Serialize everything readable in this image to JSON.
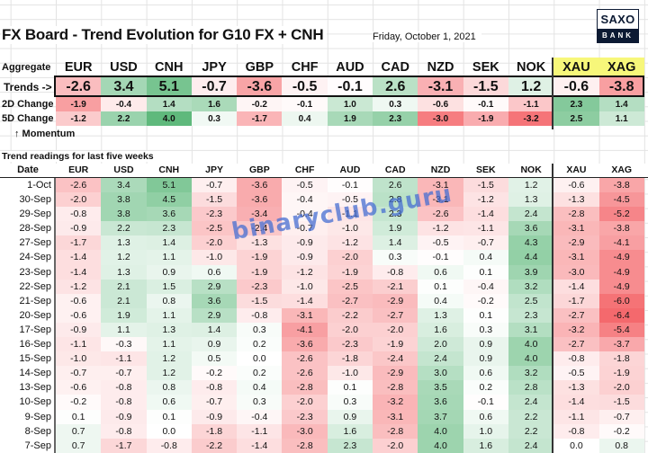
{
  "header": {
    "title": "FX Board - Trend Evolution for G10 FX + CNH",
    "date": "Friday, October 1, 2021",
    "logo_top": "SAXO",
    "logo_bottom": "BANK"
  },
  "colors": {
    "metal_header_bg": "#f7f77a",
    "positive_max": "#5fb97c",
    "negative_max": "#f4676b",
    "logo_navy": "#0c1a33",
    "watermark": "#466ed2"
  },
  "currencies": [
    "EUR",
    "USD",
    "CNH",
    "JPY",
    "GBP",
    "CHF",
    "AUD",
    "CAD",
    "NZD",
    "SEK",
    "NOK",
    "XAU",
    "XAG"
  ],
  "aggregate": {
    "label_aggregate": "Aggregate",
    "label_trends": "Trends ->",
    "label_2d": "2D Change",
    "label_5d": "5D Change",
    "label_momentum": "↑ Momentum",
    "trends": [
      "-2.6",
      "3.4",
      "5.1",
      "-0.7",
      "-3.6",
      "-0.5",
      "-0.1",
      "2.6",
      "-3.1",
      "-1.5",
      "1.2",
      "-0.6",
      "-3.8"
    ],
    "change_2d": [
      "-1.9",
      "-0.4",
      "1.4",
      "1.6",
      "-0.2",
      "-0.1",
      "1.0",
      "0.3",
      "-0.6",
      "-0.1",
      "-1.1",
      "2.3",
      "1.4"
    ],
    "change_5d": [
      "-1.2",
      "2.2",
      "4.0",
      "0.3",
      "-1.7",
      "0.4",
      "1.9",
      "2.3",
      "-3.0",
      "-1.9",
      "-3.2",
      "2.5",
      "1.1"
    ]
  },
  "history": {
    "title": "Trend readings for last five weeks",
    "date_header": "Date",
    "rows": [
      {
        "date": "1-Oct",
        "values": [
          "-2.6",
          "3.4",
          "5.1",
          "-0.7",
          "-3.6",
          "-0.5",
          "-0.1",
          "2.6",
          "-3.1",
          "-1.5",
          "1.2",
          "-0.6",
          "-3.8"
        ]
      },
      {
        "date": "30-Sep",
        "values": [
          "-2.0",
          "3.8",
          "4.5",
          "-1.5",
          "-3.6",
          "-0.4",
          "-0.5",
          "2.8",
          "-3.1",
          "-1.2",
          "1.3",
          "-1.3",
          "-4.5"
        ]
      },
      {
        "date": "29-Sep",
        "values": [
          "-0.8",
          "3.8",
          "3.6",
          "-2.3",
          "-3.4",
          "-0.4",
          "-1.1",
          "2.3",
          "-2.6",
          "-1.4",
          "2.4",
          "-2.8",
          "-5.2"
        ]
      },
      {
        "date": "28-Sep",
        "values": [
          "-0.9",
          "2.2",
          "2.3",
          "-2.5",
          "-2.4",
          "-0.7",
          "-1.0",
          "1.9",
          "-1.2",
          "-1.1",
          "3.6",
          "-3.1",
          "-3.8"
        ]
      },
      {
        "date": "27-Sep",
        "values": [
          "-1.7",
          "1.3",
          "1.4",
          "-2.0",
          "-1.3",
          "-0.9",
          "-1.2",
          "1.4",
          "-0.5",
          "-0.7",
          "4.3",
          "-2.9",
          "-4.1"
        ]
      },
      {
        "date": "24-Sep",
        "values": [
          "-1.4",
          "1.2",
          "1.1",
          "-1.0",
          "-1.9",
          "-0.9",
          "-2.0",
          "0.3",
          "-0.1",
          "0.4",
          "4.4",
          "-3.1",
          "-4.9"
        ]
      },
      {
        "date": "23-Sep",
        "values": [
          "-1.4",
          "1.3",
          "0.9",
          "0.6",
          "-1.9",
          "-1.2",
          "-1.9",
          "-0.8",
          "0.6",
          "0.1",
          "3.9",
          "-3.0",
          "-4.9"
        ]
      },
      {
        "date": "22-Sep",
        "values": [
          "-1.2",
          "2.1",
          "1.5",
          "2.9",
          "-2.3",
          "-1.0",
          "-2.5",
          "-2.1",
          "0.1",
          "-0.4",
          "3.2",
          "-1.4",
          "-4.9"
        ]
      },
      {
        "date": "21-Sep",
        "values": [
          "-0.6",
          "2.1",
          "0.8",
          "3.6",
          "-1.5",
          "-1.4",
          "-2.7",
          "-2.9",
          "0.4",
          "-0.2",
          "2.5",
          "-1.7",
          "-6.0"
        ]
      },
      {
        "date": "20-Sep",
        "values": [
          "-0.6",
          "1.9",
          "1.1",
          "2.9",
          "-0.8",
          "-3.1",
          "-2.2",
          "-2.7",
          "1.3",
          "0.1",
          "2.3",
          "-2.7",
          "-6.4"
        ]
      },
      {
        "date": "17-Sep",
        "values": [
          "-0.9",
          "1.1",
          "1.3",
          "1.4",
          "0.3",
          "-4.1",
          "-2.0",
          "-2.0",
          "1.6",
          "0.3",
          "3.1",
          "-3.2",
          "-5.4"
        ]
      },
      {
        "date": "16-Sep",
        "values": [
          "-1.1",
          "-0.3",
          "1.1",
          "0.9",
          "0.2",
          "-3.6",
          "-2.3",
          "-1.9",
          "2.0",
          "0.9",
          "4.0",
          "-2.7",
          "-3.7"
        ]
      },
      {
        "date": "15-Sep",
        "values": [
          "-1.0",
          "-1.1",
          "1.2",
          "0.5",
          "0.0",
          "-2.6",
          "-1.8",
          "-2.4",
          "2.4",
          "0.9",
          "4.0",
          "-0.8",
          "-1.8"
        ]
      },
      {
        "date": "14-Sep",
        "values": [
          "-0.7",
          "-0.7",
          "1.2",
          "-0.2",
          "0.2",
          "-2.6",
          "-1.0",
          "-2.9",
          "3.0",
          "0.6",
          "3.2",
          "-0.5",
          "-1.9"
        ]
      },
      {
        "date": "13-Sep",
        "values": [
          "-0.6",
          "-0.8",
          "0.8",
          "-0.8",
          "0.4",
          "-2.8",
          "0.1",
          "-2.8",
          "3.5",
          "0.2",
          "2.8",
          "-1.3",
          "-2.0"
        ]
      },
      {
        "date": "10-Sep",
        "values": [
          "-0.2",
          "-0.8",
          "0.6",
          "-0.7",
          "0.3",
          "-2.0",
          "0.3",
          "-3.2",
          "3.6",
          "-0.1",
          "2.4",
          "-1.4",
          "-1.5"
        ]
      },
      {
        "date": "9-Sep",
        "values": [
          "0.1",
          "-0.9",
          "0.1",
          "-0.9",
          "-0.4",
          "-2.3",
          "0.9",
          "-3.1",
          "3.7",
          "0.6",
          "2.2",
          "-1.1",
          "-0.7"
        ]
      },
      {
        "date": "8-Sep",
        "values": [
          "0.7",
          "-0.8",
          "0.0",
          "-1.8",
          "-1.1",
          "-3.0",
          "1.6",
          "-2.8",
          "4.0",
          "1.0",
          "2.2",
          "-0.8",
          "-0.2"
        ]
      },
      {
        "date": "7-Sep",
        "values": [
          "0.7",
          "-1.7",
          "-0.8",
          "-2.2",
          "-1.4",
          "-2.8",
          "2.3",
          "-2.0",
          "4.0",
          "1.6",
          "2.4",
          "0.0",
          "0.8"
        ]
      }
    ]
  },
  "watermark": "binaryclub.guru"
}
